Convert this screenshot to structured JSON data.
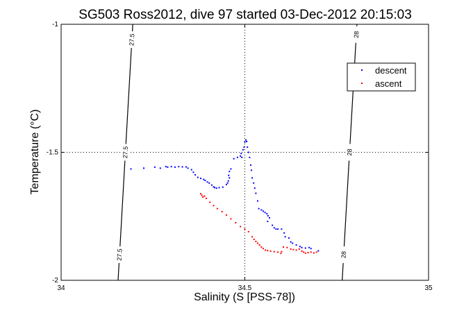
{
  "chart_data": {
    "type": "scatter",
    "title": "SG503 Ross2012, dive 97 started 03-Dec-2012 20:15:03",
    "xlabel": "Salinity (S [PSS-78])",
    "ylabel": "Temperature (°C)",
    "xlim": [
      34,
      35
    ],
    "ylim": [
      -2,
      -1
    ],
    "xticks": [
      {
        "v": 34,
        "label": "34"
      },
      {
        "v": 34.5,
        "label": "34.5"
      },
      {
        "v": 35,
        "label": "35"
      }
    ],
    "yticks": [
      {
        "v": -2,
        "label": "-2"
      },
      {
        "v": -1.5,
        "label": "-1.5"
      },
      {
        "v": -1,
        "label": "-1"
      }
    ],
    "grid": "dotted at x=34.5 and y=-1.5",
    "legend_position": "top-right",
    "isopycnals": [
      {
        "label": "27.5",
        "x_bottom": 34.155,
        "x_top": 34.195,
        "label_y": [
          -1.9,
          -1.5,
          -1.06
        ]
      },
      {
        "label": "28",
        "x_bottom": 34.765,
        "x_top": 34.805,
        "label_y": [
          -1.9,
          -1.5,
          -1.04
        ]
      }
    ],
    "series": [
      {
        "name": "descent",
        "color": "#0000ff",
        "points": [
          [
            34.19,
            -1.565
          ],
          [
            34.225,
            -1.562
          ],
          [
            34.255,
            -1.558
          ],
          [
            34.27,
            -1.562
          ],
          [
            34.285,
            -1.556
          ],
          [
            34.29,
            -1.558
          ],
          [
            34.3,
            -1.556
          ],
          [
            34.31,
            -1.558
          ],
          [
            34.32,
            -1.556
          ],
          [
            34.33,
            -1.557
          ],
          [
            34.34,
            -1.557
          ],
          [
            34.345,
            -1.562
          ],
          [
            34.355,
            -1.568
          ],
          [
            34.36,
            -1.578
          ],
          [
            34.365,
            -1.588
          ],
          [
            34.372,
            -1.598
          ],
          [
            34.38,
            -1.602
          ],
          [
            34.388,
            -1.606
          ],
          [
            34.392,
            -1.61
          ],
          [
            34.398,
            -1.616
          ],
          [
            34.403,
            -1.62
          ],
          [
            34.41,
            -1.628
          ],
          [
            34.415,
            -1.635
          ],
          [
            34.418,
            -1.638
          ],
          [
            34.423,
            -1.64
          ],
          [
            34.43,
            -1.638
          ],
          [
            34.44,
            -1.636
          ],
          [
            34.45,
            -1.626
          ],
          [
            34.453,
            -1.62
          ],
          [
            34.455,
            -1.612
          ],
          [
            34.458,
            -1.6
          ],
          [
            34.456,
            -1.59
          ],
          [
            34.458,
            -1.575
          ],
          [
            34.462,
            -1.565
          ],
          [
            34.47,
            -1.525
          ],
          [
            34.48,
            -1.52
          ],
          [
            34.488,
            -1.515
          ],
          [
            34.492,
            -1.52
          ],
          [
            34.49,
            -1.505
          ],
          [
            34.495,
            -1.49
          ],
          [
            34.498,
            -1.48
          ],
          [
            34.5,
            -1.46
          ],
          [
            34.503,
            -1.452
          ],
          [
            34.505,
            -1.458
          ],
          [
            34.507,
            -1.48
          ],
          [
            34.51,
            -1.5
          ],
          [
            34.513,
            -1.52
          ],
          [
            34.516,
            -1.55
          ],
          [
            34.518,
            -1.57
          ],
          [
            34.52,
            -1.6
          ],
          [
            34.524,
            -1.62
          ],
          [
            34.527,
            -1.64
          ],
          [
            34.53,
            -1.66
          ],
          [
            34.535,
            -1.69
          ],
          [
            34.538,
            -1.72
          ],
          [
            34.545,
            -1.725
          ],
          [
            34.55,
            -1.73
          ],
          [
            34.555,
            -1.735
          ],
          [
            34.56,
            -1.74
          ],
          [
            34.563,
            -1.748
          ],
          [
            34.567,
            -1.756
          ],
          [
            34.562,
            -1.77
          ],
          [
            34.575,
            -1.785
          ],
          [
            34.58,
            -1.795
          ],
          [
            34.585,
            -1.8
          ],
          [
            34.59,
            -1.8
          ],
          [
            34.6,
            -1.8
          ],
          [
            34.607,
            -1.815
          ],
          [
            34.61,
            -1.83
          ],
          [
            34.62,
            -1.835
          ],
          [
            34.625,
            -1.85
          ],
          [
            34.63,
            -1.855
          ],
          [
            34.64,
            -1.862
          ],
          [
            34.65,
            -1.868
          ],
          [
            34.655,
            -1.872
          ],
          [
            34.665,
            -1.874
          ],
          [
            34.675,
            -1.872
          ],
          [
            34.68,
            -1.876
          ],
          [
            34.7,
            -1.885
          ]
        ]
      },
      {
        "name": "ascent",
        "color": "#ff0000",
        "points": [
          [
            34.38,
            -1.662
          ],
          [
            34.383,
            -1.668
          ],
          [
            34.386,
            -1.675
          ],
          [
            34.39,
            -1.671
          ],
          [
            34.395,
            -1.68
          ],
          [
            34.405,
            -1.695
          ],
          [
            34.415,
            -1.708
          ],
          [
            34.425,
            -1.72
          ],
          [
            34.438,
            -1.732
          ],
          [
            34.45,
            -1.745
          ],
          [
            34.462,
            -1.76
          ],
          [
            34.475,
            -1.775
          ],
          [
            34.488,
            -1.79
          ],
          [
            34.5,
            -1.8
          ],
          [
            34.51,
            -1.81
          ],
          [
            34.52,
            -1.83
          ],
          [
            34.525,
            -1.84
          ],
          [
            34.53,
            -1.848
          ],
          [
            34.535,
            -1.855
          ],
          [
            34.54,
            -1.862
          ],
          [
            34.545,
            -1.87
          ],
          [
            34.55,
            -1.876
          ],
          [
            34.556,
            -1.882
          ],
          [
            34.562,
            -1.884
          ],
          [
            34.57,
            -1.886
          ],
          [
            34.58,
            -1.888
          ],
          [
            34.59,
            -1.89
          ],
          [
            34.598,
            -1.895
          ],
          [
            34.6,
            -1.888
          ],
          [
            34.605,
            -1.87
          ],
          [
            34.615,
            -1.872
          ],
          [
            34.625,
            -1.878
          ],
          [
            34.632,
            -1.88
          ],
          [
            34.64,
            -1.882
          ],
          [
            34.648,
            -1.878
          ],
          [
            34.655,
            -1.886
          ],
          [
            34.66,
            -1.89
          ],
          [
            34.665,
            -1.894
          ],
          [
            34.672,
            -1.892
          ],
          [
            34.68,
            -1.89
          ],
          [
            34.688,
            -1.893
          ],
          [
            34.695,
            -1.89
          ]
        ]
      }
    ]
  }
}
